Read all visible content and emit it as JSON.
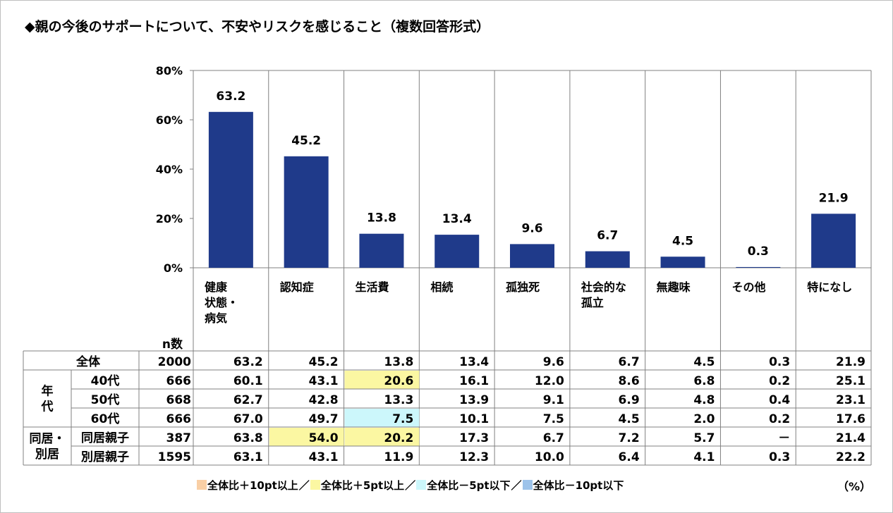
{
  "title": "◆親の今後のサポートについて、不安やリスクを感じること（複数回答形式）",
  "unit_label": "（%）",
  "colors": {
    "bar": "#1f3a8a",
    "grid": "#808080",
    "plus10": "#f9cfa5",
    "plus5": "#fbf7a2",
    "minus5": "#ccf7fb",
    "minus10": "#9dc3ea"
  },
  "chart_data": {
    "type": "bar",
    "categories": [
      "健康\n状態・\n病気",
      "認知症",
      "生活費",
      "相続",
      "孤独死",
      "社会的な\n孤立",
      "無趣味",
      "その他",
      "特になし"
    ],
    "values": [
      63.2,
      45.2,
      13.8,
      13.4,
      9.6,
      6.7,
      4.5,
      0.3,
      21.9
    ],
    "value_labels": [
      "63.2",
      "45.2",
      "13.8",
      "13.4",
      "9.6",
      "6.7",
      "4.5",
      "0.3",
      "21.9"
    ],
    "ylim": [
      0,
      80
    ],
    "yticks": [
      "0%",
      "20%",
      "40%",
      "60%",
      "80%"
    ],
    "grid": true
  },
  "table": {
    "n_header": "n数",
    "groups": [
      {
        "label": "",
        "rows": [
          0
        ]
      },
      {
        "label": "年\n代",
        "rows": [
          1,
          2,
          3
        ]
      },
      {
        "label": "同居・\n別居",
        "rows": [
          4,
          5
        ]
      }
    ],
    "rows": [
      {
        "label": "全体",
        "n": "2000",
        "values": [
          "63.2",
          "45.2",
          "13.8",
          "13.4",
          "9.6",
          "6.7",
          "4.5",
          "0.3",
          "21.9"
        ],
        "highlights": [
          "",
          "",
          "",
          "",
          "",
          "",
          "",
          "",
          ""
        ]
      },
      {
        "label": "40代",
        "n": "666",
        "values": [
          "60.1",
          "43.1",
          "20.6",
          "16.1",
          "12.0",
          "8.6",
          "6.8",
          "0.2",
          "25.1"
        ],
        "highlights": [
          "",
          "",
          "plus5",
          "",
          "",
          "",
          "",
          "",
          ""
        ]
      },
      {
        "label": "50代",
        "n": "668",
        "values": [
          "62.7",
          "42.8",
          "13.3",
          "13.9",
          "9.1",
          "6.9",
          "4.8",
          "0.4",
          "23.1"
        ],
        "highlights": [
          "",
          "",
          "",
          "",
          "",
          "",
          "",
          "",
          ""
        ]
      },
      {
        "label": "60代",
        "n": "666",
        "values": [
          "67.0",
          "49.7",
          "7.5",
          "10.1",
          "7.5",
          "4.5",
          "2.0",
          "0.2",
          "17.6"
        ],
        "highlights": [
          "",
          "",
          "minus5",
          "",
          "",
          "",
          "",
          "",
          ""
        ]
      },
      {
        "label": "同居親子",
        "n": "387",
        "values": [
          "63.8",
          "54.0",
          "20.2",
          "17.3",
          "6.7",
          "7.2",
          "5.7",
          "－",
          "21.4"
        ],
        "highlights": [
          "",
          "plus5",
          "plus5",
          "",
          "",
          "",
          "",
          "",
          ""
        ]
      },
      {
        "label": "別居親子",
        "n": "1595",
        "values": [
          "63.1",
          "43.1",
          "11.9",
          "12.3",
          "10.0",
          "6.4",
          "4.1",
          "0.3",
          "22.2"
        ],
        "highlights": [
          "",
          "",
          "",
          "",
          "",
          "",
          "",
          "",
          ""
        ]
      }
    ]
  },
  "legend": [
    {
      "key": "plus10",
      "label": "全体比＋10pt以上"
    },
    {
      "key": "plus5",
      "label": "全体比＋5pt以上"
    },
    {
      "key": "minus5",
      "label": "全体比－5pt以下"
    },
    {
      "key": "minus10",
      "label": "全体比－10pt以下"
    }
  ],
  "legend_separator": "／"
}
